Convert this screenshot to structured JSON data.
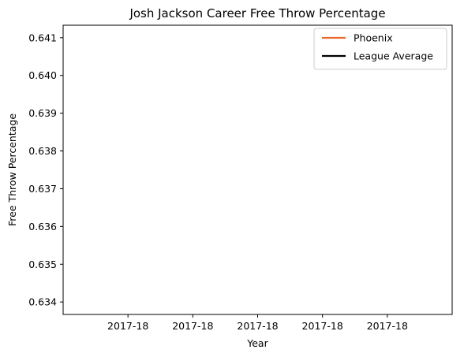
{
  "chart_data": {
    "type": "line",
    "title": "Josh Jackson  Career Free Throw Percentage",
    "xlabel": "Year",
    "ylabel": "Free Throw Percentage",
    "x_tick_labels": [
      "2017-18",
      "2017-18",
      "2017-18",
      "2017-18",
      "2017-18"
    ],
    "y_ticks": [
      0.634,
      0.635,
      0.636,
      0.637,
      0.638,
      0.639,
      0.64,
      0.641
    ],
    "ylim": [
      0.63367,
      0.64133
    ],
    "grid": false,
    "legend_position": "top-right",
    "series": [
      {
        "name": "Phoenix",
        "color": "#e8692f",
        "values": []
      },
      {
        "name": "League Average",
        "color": "#000000",
        "values": []
      }
    ]
  }
}
